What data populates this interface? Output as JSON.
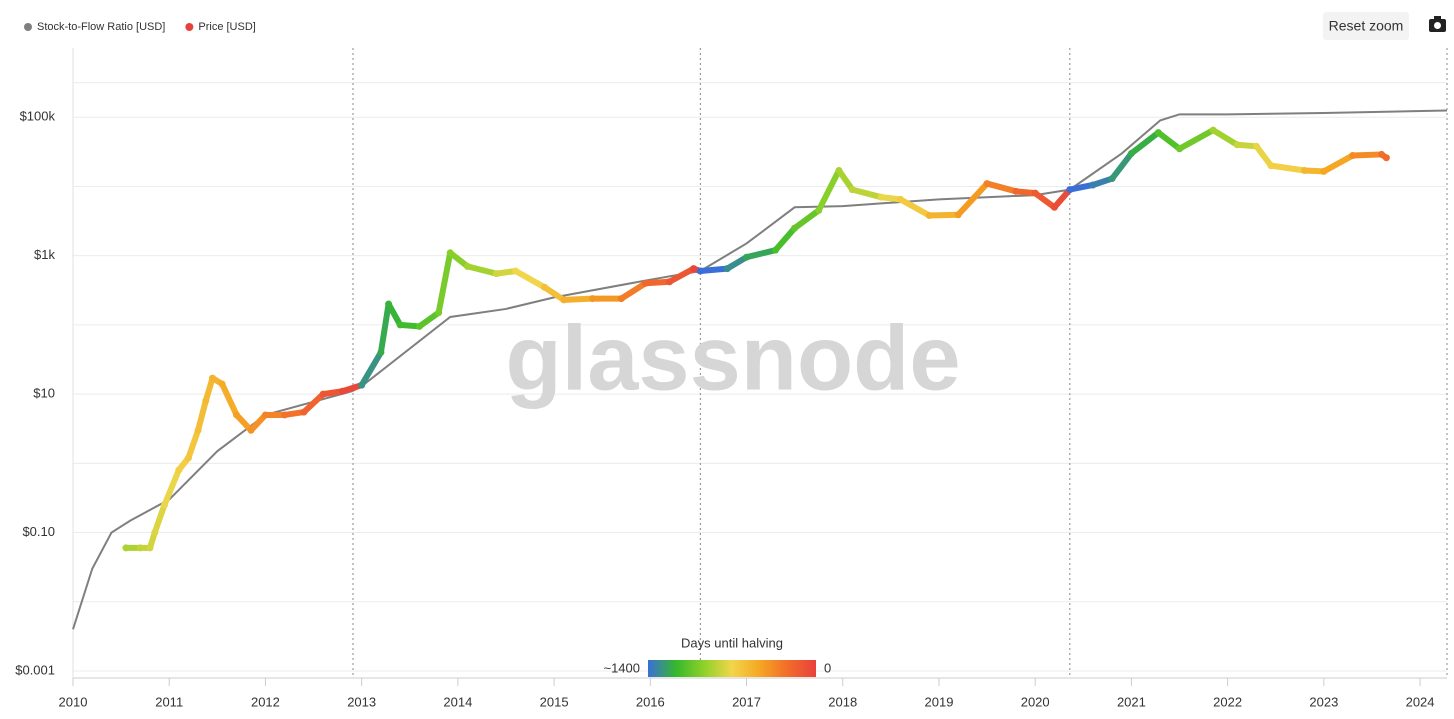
{
  "chart_data": {
    "type": "scatter",
    "legend": [
      {
        "name": "Stock-to-Flow Ratio [USD]",
        "color": "#7f7f7f"
      },
      {
        "name": "Price [USD]",
        "color": "#e8413c"
      }
    ],
    "reset_zoom": "Reset zoom",
    "watermark": "glassnode",
    "log_y": true,
    "grid": true,
    "xlim": [
      2010,
      2024.28
    ],
    "xticks": [
      2010,
      2011,
      2012,
      2013,
      2014,
      2015,
      2016,
      2017,
      2018,
      2019,
      2020,
      2021,
      2022,
      2023,
      2024
    ],
    "ylim": [
      0.001,
      1000000
    ],
    "yticks": [
      {
        "value": 0.001,
        "label": "$0.001"
      },
      {
        "value": 0.1,
        "label": "$0.10"
      },
      {
        "value": 10,
        "label": "$10"
      },
      {
        "value": 1000,
        "label": "$1k"
      },
      {
        "value": 100000,
        "label": "$100k"
      }
    ],
    "halvings": [
      2012.91,
      2016.52,
      2020.36,
      2024.28
    ],
    "colorbar": {
      "title": "Days until halving",
      "min_label": "~1400",
      "max_label": "0",
      "colors": [
        "#3a6fd8",
        "#36b82c",
        "#8fd12a",
        "#f2d54a",
        "#f5a623",
        "#f26b2a",
        "#e8413c"
      ]
    },
    "series": [
      {
        "name": "Stock-to-Flow Ratio [USD]",
        "color": "#7f7f7f",
        "x": [
          2010.0,
          2010.2,
          2010.4,
          2010.6,
          2011.0,
          2011.5,
          2012.0,
          2012.9,
          2013.0,
          2013.92,
          2014.5,
          2015.0,
          2016.0,
          2016.52,
          2017.0,
          2017.5,
          2018.0,
          2019.0,
          2020.0,
          2020.36,
          2020.9,
          2021.3,
          2021.5,
          2022.0,
          2023.0,
          2024.28
        ],
        "values": [
          0.004,
          0.03,
          0.1,
          0.15,
          0.3,
          1.5,
          5,
          11,
          13,
          130,
          170,
          250,
          450,
          600,
          1500,
          5000,
          5200,
          6500,
          7500,
          9000,
          30000,
          90000,
          110000,
          110000,
          115000,
          125000
        ]
      },
      {
        "name": "Price [USD]",
        "color": "#e8413c",
        "x": [
          2010.55,
          2010.7,
          2010.8,
          2010.85,
          2010.95,
          2011.1,
          2011.2,
          2011.3,
          2011.38,
          2011.45,
          2011.55,
          2011.7,
          2011.85,
          2012.0,
          2012.2,
          2012.4,
          2012.6,
          2012.8,
          2013.0,
          2013.2,
          2013.28,
          2013.4,
          2013.6,
          2013.8,
          2013.92,
          2014.1,
          2014.4,
          2014.6,
          2014.9,
          2015.1,
          2015.4,
          2015.7,
          2015.95,
          2016.2,
          2016.45,
          2016.52,
          2016.8,
          2017.0,
          2017.3,
          2017.5,
          2017.75,
          2017.96,
          2018.1,
          2018.4,
          2018.6,
          2018.9,
          2019.2,
          2019.5,
          2019.8,
          2020.0,
          2020.2,
          2020.36,
          2020.6,
          2020.8,
          2021.0,
          2021.28,
          2021.5,
          2021.85,
          2022.1,
          2022.3,
          2022.45,
          2022.8,
          2023.0,
          2023.3,
          2023.6,
          2023.65
        ],
        "values": [
          0.06,
          0.06,
          0.06,
          0.1,
          0.25,
          0.8,
          1.2,
          3,
          8,
          17,
          14,
          5,
          3,
          5,
          5,
          5.5,
          10,
          11,
          13.5,
          40,
          200,
          100,
          95,
          150,
          1100,
          700,
          550,
          600,
          350,
          230,
          240,
          240,
          400,
          420,
          650,
          600,
          650,
          950,
          1200,
          2500,
          4500,
          17000,
          9000,
          7000,
          6500,
          3800,
          3900,
          11000,
          8500,
          8000,
          5000,
          9000,
          10500,
          13000,
          30000,
          60000,
          35000,
          65000,
          40000,
          38000,
          20000,
          17000,
          16500,
          28000,
          29000,
          26000
        ]
      }
    ]
  }
}
